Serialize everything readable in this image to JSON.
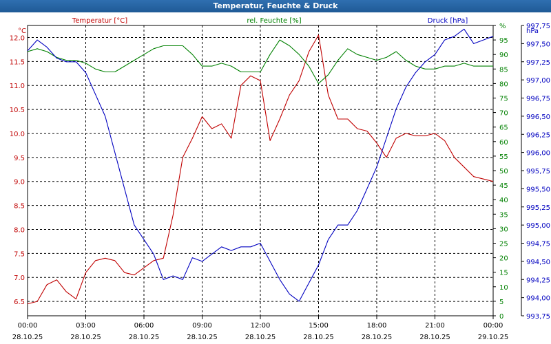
{
  "window": {
    "title": "Temperatur, Feuchte & Druck"
  },
  "chart_data": {
    "type": "line",
    "title": "Temperatur, Feuchte & Druck",
    "colors": {
      "temp": "#c00000",
      "hum": "#008000",
      "press": "#0000c0"
    },
    "x_range": [
      0,
      24
    ],
    "x_ticks": [
      {
        "t": 0,
        "time": "00:00",
        "date": "28.10.25"
      },
      {
        "t": 3,
        "time": "03:00",
        "date": "28.10.25"
      },
      {
        "t": 6,
        "time": "06:00",
        "date": "28.10.25"
      },
      {
        "t": 9,
        "time": "09:00",
        "date": "28.10.25"
      },
      {
        "t": 12,
        "time": "12:00",
        "date": "28.10.25"
      },
      {
        "t": 15,
        "time": "15:00",
        "date": "28.10.25"
      },
      {
        "t": 18,
        "time": "18:00",
        "date": "28.10.25"
      },
      {
        "t": 21,
        "time": "21:00",
        "date": "28.10.25"
      },
      {
        "t": 24,
        "time": "00:00",
        "date": "29.10.25"
      }
    ],
    "axes": {
      "temp": {
        "unit": "°C",
        "label": "Temperatur [°C]",
        "range": [
          6.2,
          12.25
        ],
        "ticks": [
          "6.5",
          "7.0",
          "7.5",
          "8.0",
          "8.5",
          "9.0",
          "9.5",
          "10.0",
          "10.5",
          "11.0",
          "11.5",
          "12.0"
        ]
      },
      "hum": {
        "unit": "%",
        "label": "rel. Feuchte [%]",
        "range": [
          0,
          100
        ],
        "ticks": [
          "0",
          "5",
          "10",
          "15",
          "20",
          "25",
          "30",
          "35",
          "40",
          "45",
          "50",
          "55",
          "60",
          "65",
          "70",
          "75",
          "80",
          "85",
          "90",
          "95",
          "%"
        ]
      },
      "press": {
        "unit": "hPa",
        "label": "Druck [hPa]",
        "range": [
          993.75,
          997.75
        ],
        "ticks": [
          "993,75",
          "994,00",
          "994,25",
          "994,50",
          "994,75",
          "995,00",
          "995,25",
          "995,50",
          "995,75",
          "996,00",
          "996,25",
          "996,50",
          "996,75",
          "997,00",
          "997,25",
          "997,50",
          "997,75"
        ]
      }
    },
    "series": [
      {
        "name": "Temperatur [°C]",
        "key": "temp",
        "x": [
          0,
          0.5,
          1,
          1.5,
          2,
          2.5,
          3,
          3.5,
          4,
          4.5,
          5,
          5.5,
          6,
          6.5,
          7,
          7.5,
          8,
          8.5,
          9,
          9.5,
          10,
          10.5,
          11,
          11.5,
          12,
          12.5,
          13,
          13.5,
          14,
          14.5,
          15,
          15.5,
          16,
          16.5,
          17,
          17.5,
          18,
          18.5,
          19,
          19.5,
          20,
          20.5,
          21,
          21.5,
          22,
          22.5,
          23,
          23.5,
          24
        ],
        "values": [
          6.45,
          6.5,
          6.85,
          6.95,
          6.7,
          6.55,
          7.1,
          7.35,
          7.4,
          7.35,
          7.1,
          7.05,
          7.2,
          7.35,
          7.4,
          8.3,
          9.5,
          9.9,
          10.35,
          10.1,
          10.2,
          9.9,
          11.0,
          11.2,
          11.1,
          9.85,
          10.3,
          10.8,
          11.1,
          11.7,
          12.05,
          10.8,
          10.3,
          10.3,
          10.1,
          10.05,
          9.8,
          9.5,
          9.9,
          10.0,
          9.95,
          9.95,
          10.0,
          9.85,
          9.5,
          9.3,
          9.1,
          9.05,
          9.0
        ]
      },
      {
        "name": "rel. Feuchte [%]",
        "key": "hum",
        "x": [
          0,
          0.5,
          1,
          1.5,
          2,
          2.5,
          3,
          3.5,
          4,
          4.5,
          5,
          5.5,
          6,
          6.5,
          7,
          7.5,
          8,
          8.5,
          9,
          9.5,
          10,
          10.5,
          11,
          11.5,
          12,
          12.5,
          13,
          13.5,
          14,
          14.5,
          15,
          15.5,
          16,
          16.5,
          17,
          17.5,
          18,
          18.5,
          19,
          19.5,
          20,
          20.5,
          21,
          21.5,
          22,
          22.5,
          23,
          23.5,
          24
        ],
        "values": [
          91,
          92,
          91,
          89,
          88,
          88,
          87,
          85,
          84,
          84,
          86,
          88,
          90,
          92,
          93,
          93,
          93,
          90,
          86,
          86,
          87,
          86,
          84,
          84,
          84,
          90,
          95,
          93,
          90,
          86,
          80,
          83,
          88,
          92,
          90,
          89,
          88,
          89,
          91,
          88,
          86,
          85,
          85,
          86,
          86,
          87,
          86,
          86,
          86
        ]
      },
      {
        "name": "Druck [hPa]",
        "key": "press",
        "x": [
          0,
          0.5,
          1,
          1.5,
          2,
          2.5,
          3,
          3.5,
          4,
          4.5,
          5,
          5.5,
          6,
          6.5,
          7,
          7.5,
          8,
          8.5,
          9,
          9.5,
          10,
          10.5,
          11,
          11.5,
          12,
          12.5,
          13,
          13.5,
          14,
          14.5,
          15,
          15.5,
          16,
          16.5,
          17,
          17.5,
          18,
          18.5,
          19,
          19.5,
          20,
          20.5,
          21,
          21.5,
          22,
          22.5,
          23,
          23.5,
          24
        ],
        "values": [
          997.4,
          997.55,
          997.45,
          997.3,
          997.25,
          997.25,
          997.1,
          996.8,
          996.5,
          996.0,
          995.5,
          995.0,
          994.8,
          994.6,
          994.25,
          994.3,
          994.25,
          994.55,
          994.5,
          994.6,
          994.7,
          994.65,
          994.7,
          994.7,
          994.75,
          994.5,
          994.25,
          994.05,
          993.95,
          994.2,
          994.45,
          994.8,
          995.0,
          995.0,
          995.2,
          995.5,
          995.8,
          996.2,
          996.6,
          996.9,
          997.1,
          997.25,
          997.35,
          997.55,
          997.6,
          997.7,
          997.5,
          997.55,
          997.6
        ]
      }
    ]
  }
}
